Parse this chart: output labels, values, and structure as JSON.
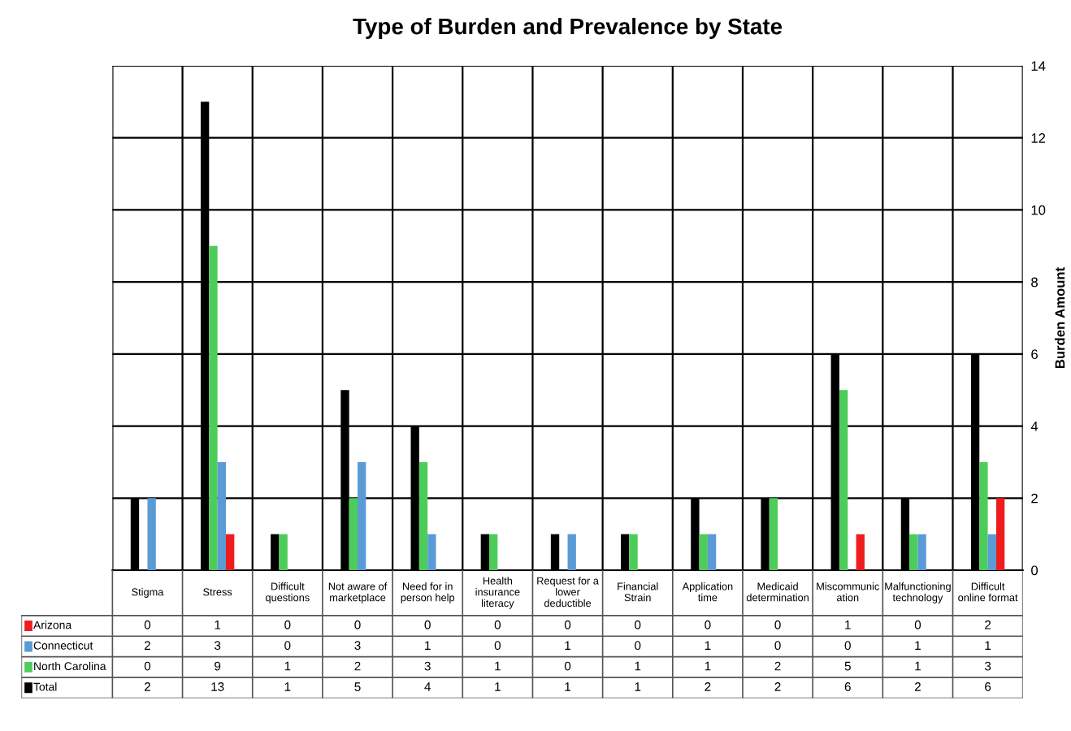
{
  "chart_data": {
    "type": "bar",
    "title": "Type of Burden and Prevalence by State",
    "ylabel": "Burden Amount",
    "categories": [
      "Stigma",
      "Stress",
      "Difficult questions",
      "Not aware of marketplace",
      "Need for in person help",
      "Health insurance literacy",
      "Request for a lower deductible",
      "Financial Strain",
      "Application time",
      "Medicaid determination",
      "Miscommunication",
      "Malfunctioning technology",
      "Difficult online format"
    ],
    "series": [
      {
        "name": "Arizona",
        "color": "#ee1c1c",
        "values": [
          0,
          1,
          0,
          0,
          0,
          0,
          0,
          0,
          0,
          0,
          1,
          0,
          2
        ]
      },
      {
        "name": "Connecticut",
        "color": "#5b9bd5",
        "values": [
          2,
          3,
          0,
          3,
          1,
          0,
          1,
          0,
          1,
          0,
          0,
          1,
          1
        ]
      },
      {
        "name": "North Carolina",
        "color": "#4ccd5a",
        "values": [
          0,
          9,
          1,
          2,
          3,
          1,
          0,
          1,
          1,
          2,
          5,
          1,
          3
        ]
      },
      {
        "name": "Total",
        "color": "#000000",
        "values": [
          2,
          13,
          1,
          5,
          4,
          1,
          1,
          1,
          2,
          2,
          6,
          2,
          6
        ]
      }
    ],
    "ylim": [
      0,
      14
    ],
    "yticks": [
      0,
      2,
      4,
      6,
      8,
      10,
      12,
      14
    ],
    "grid": true,
    "legend": "bottom left",
    "data_labels": true
  }
}
